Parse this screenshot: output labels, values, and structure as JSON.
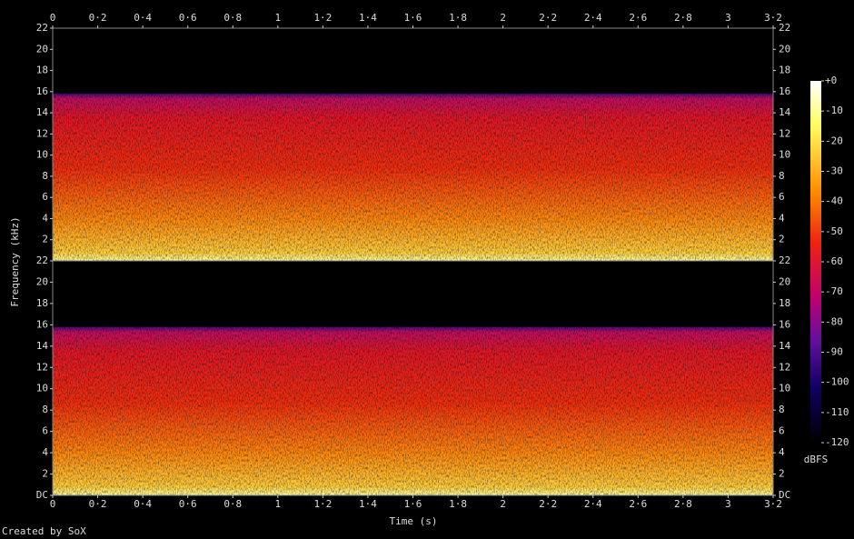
{
  "chart_data": {
    "type": "spectrogram",
    "x_label": "Time (s)",
    "y_label": "Frequency (kHz)",
    "credit": "Created by SoX",
    "xlim": [
      0,
      3.2
    ],
    "xticks": [
      0,
      {
        "value": 0.2,
        "label": "0·2"
      },
      {
        "value": 0.4,
        "label": "0·4"
      },
      {
        "value": 0.6,
        "label": "0·6"
      },
      {
        "value": 0.8,
        "label": "0·8"
      },
      1,
      {
        "value": 1.2,
        "label": "1·2"
      },
      {
        "value": 1.4,
        "label": "1·4"
      },
      {
        "value": 1.6,
        "label": "1·6"
      },
      {
        "value": 1.8,
        "label": "1·8"
      },
      2,
      {
        "value": 2.2,
        "label": "2·2"
      },
      {
        "value": 2.4,
        "label": "2·4"
      },
      {
        "value": 2.6,
        "label": "2·6"
      },
      {
        "value": 2.8,
        "label": "2·8"
      },
      3,
      {
        "value": 3.2,
        "label": "3·2"
      }
    ],
    "channels": [
      {
        "ylim": [
          0,
          22
        ],
        "yticks": [
          2,
          4,
          6,
          8,
          10,
          12,
          14,
          16,
          18,
          20,
          22
        ]
      },
      {
        "ylim": [
          0,
          22
        ],
        "yticks": [
          {
            "value": 0,
            "label": "DC"
          },
          2,
          4,
          6,
          8,
          10,
          12,
          14,
          16,
          18,
          20,
          22
        ]
      }
    ],
    "colorbar": {
      "label": "dBFS",
      "lim": [
        -120,
        0
      ],
      "ticks": [
        {
          "value": 0,
          "label": "+0"
        },
        -10,
        -20,
        -30,
        -40,
        -50,
        -60,
        -70,
        -80,
        -90,
        -100,
        -110,
        -120
      ]
    }
  }
}
